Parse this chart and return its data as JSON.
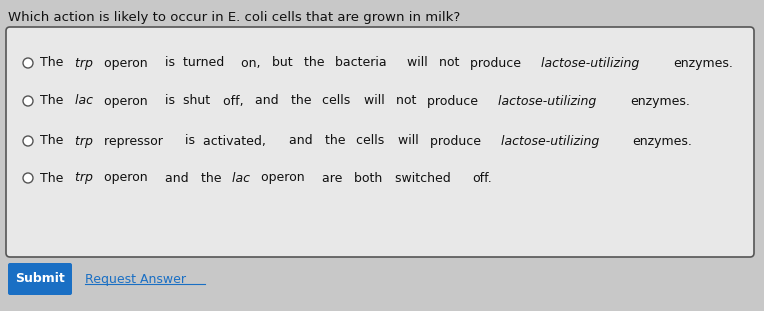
{
  "question": "Which action is likely to occur in E. coli cells that are grown in milk?",
  "options": [
    "The trp operon is turned on, but the bacteria will not produce lactose-utilizing enzymes.",
    "The lac operon is shut off, and the cells will not produce lactose-utilizing enzymes.",
    "The trp repressor is activated, and the cells will produce lactose-utilizing enzymes.",
    "The trp operon and the lac operon are both switched off."
  ],
  "italic_words": {
    "0": [
      "trp",
      "lactose-utilizing"
    ],
    "1": [
      "lac",
      "lactose-utilizing"
    ],
    "2": [
      "trp",
      "lactose-utilizing"
    ],
    "3": [
      "trp",
      "lac"
    ]
  },
  "submit_label": "Submit",
  "request_label": "Request Answer",
  "bg_color": "#c8c8c8",
  "box_bg": "#e8e8e8",
  "box_border": "#555555",
  "submit_bg": "#1a6fc4",
  "submit_text_color": "#ffffff",
  "request_text_color": "#1a6fc4",
  "question_color": "#111111",
  "option_color": "#111111",
  "question_fontsize": 9.5,
  "option_fontsize": 9.0,
  "button_fontsize": 9.0
}
